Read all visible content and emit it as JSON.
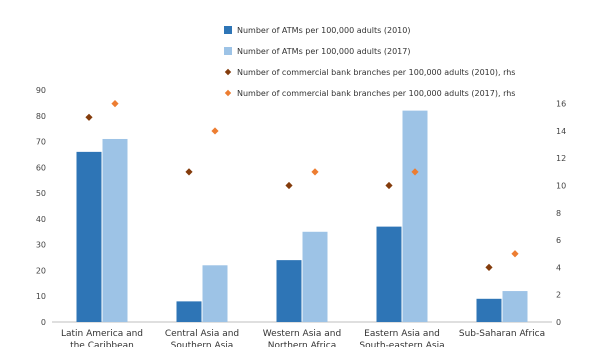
{
  "chart_data": {
    "type": "bar",
    "categories": [
      [
        "Latin America and",
        "the Caribbean"
      ],
      [
        "Central Asia and",
        "Southern Asia"
      ],
      [
        "Western Asia and",
        "Northern Africa"
      ],
      [
        "Eastern Asia and",
        "South-eastern Asia"
      ],
      [
        "Sub-Saharan Africa"
      ]
    ],
    "series": [
      {
        "name": "Number of ATMs per 100,000 adults (2010)",
        "kind": "bar",
        "axis": "left",
        "color": "#2e75b6",
        "values": [
          66,
          8,
          24,
          37,
          9
        ]
      },
      {
        "name": "Number of ATMs per 100,000 adults (2017)",
        "kind": "bar",
        "axis": "left",
        "color": "#9dc3e6",
        "values": [
          71,
          22,
          35,
          82,
          12
        ]
      },
      {
        "name": "Number of commercial bank branches per 100,000 adults (2010), rhs",
        "kind": "marker",
        "axis": "right",
        "color": "#843c0c",
        "values": [
          15,
          11,
          10,
          10,
          4
        ]
      },
      {
        "name": "Number of commercial bank branches per 100,000 adults (2017), rhs",
        "kind": "marker",
        "axis": "right",
        "color": "#ed7d31",
        "values": [
          16,
          14,
          11,
          11,
          5
        ]
      }
    ],
    "ylim": [
      0,
      90
    ],
    "yticks": [
      0,
      10,
      20,
      30,
      40,
      50,
      60,
      70,
      80,
      90
    ],
    "y2lim": [
      0,
      17
    ],
    "y2ticks": [
      0,
      2,
      4,
      6,
      8,
      10,
      12,
      14,
      16
    ],
    "grid": false,
    "legend_position": "top-right"
  }
}
